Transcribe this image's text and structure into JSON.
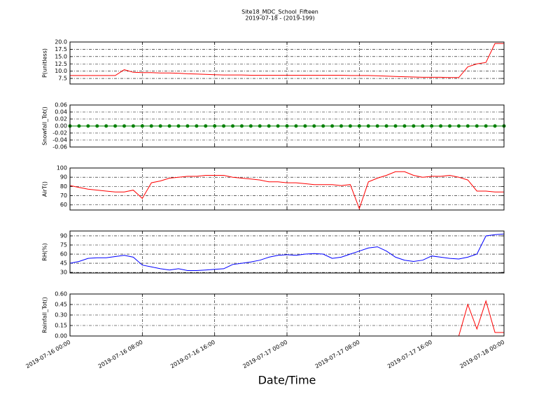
{
  "chart_data": [
    {
      "type": "line",
      "title": "Site18_MDC_School_Fifteen",
      "subtitle": "2019-07-18 - (2019-199)",
      "ylabel": "P(unitless)",
      "color": "#ff0000",
      "grid": true,
      "xlim": [
        "2019-07-16 00:00",
        "2019-07-18 00:00"
      ],
      "xticks": [
        "2019-07-16 00:00",
        "2019-07-16 08:00",
        "2019-07-16 16:00",
        "2019-07-17 00:00",
        "2019-07-17 08:00",
        "2019-07-17 16:00",
        "2019-07-18 00:00"
      ],
      "ylim": [
        5.6,
        20
      ],
      "yticks": [
        7.5,
        {
          "value": 10,
          "label": "10.0"
        },
        12.5,
        {
          "value": 15,
          "label": "15.0"
        },
        17.5,
        {
          "value": 20,
          "label": "20.0"
        }
      ],
      "x": [
        "2019-07-16 00:00",
        "2019-07-16 01:00",
        "2019-07-16 02:00",
        "2019-07-16 03:00",
        "2019-07-16 04:00",
        "2019-07-16 05:00",
        "2019-07-16 06:00",
        "2019-07-16 07:00",
        "2019-07-16 08:00",
        "2019-07-16 09:00",
        "2019-07-16 10:00",
        "2019-07-16 11:00",
        "2019-07-16 12:00",
        "2019-07-16 13:00",
        "2019-07-16 14:00",
        "2019-07-16 15:00",
        "2019-07-16 16:00",
        "2019-07-16 17:00",
        "2019-07-16 18:00",
        "2019-07-16 19:00",
        "2019-07-16 20:00",
        "2019-07-16 21:00",
        "2019-07-16 22:00",
        "2019-07-16 23:00",
        "2019-07-17 00:00",
        "2019-07-17 01:00",
        "2019-07-17 02:00",
        "2019-07-17 03:00",
        "2019-07-17 04:00",
        "2019-07-17 05:00",
        "2019-07-17 06:00",
        "2019-07-17 07:00",
        "2019-07-17 08:00",
        "2019-07-17 09:00",
        "2019-07-17 10:00",
        "2019-07-17 11:00",
        "2019-07-17 12:00",
        "2019-07-17 13:00",
        "2019-07-17 14:00",
        "2019-07-17 15:00",
        "2019-07-17 16:00",
        "2019-07-17 17:00",
        "2019-07-17 18:00",
        "2019-07-17 19:00",
        "2019-07-17 20:00",
        "2019-07-17 21:00",
        "2019-07-17 22:00",
        "2019-07-17 23:00",
        "2019-07-18 00:00"
      ],
      "values": [
        8.5,
        8.5,
        8.5,
        8.5,
        8.5,
        8.5,
        10.5,
        9.6,
        9.5,
        9.5,
        9.4,
        9.4,
        9.3,
        9.1,
        9,
        8.9,
        8.8,
        8.7,
        8.7,
        8.7,
        8.6,
        8.6,
        8.6,
        8.6,
        8.6,
        8.6,
        8.6,
        8.6,
        8.6,
        8.6,
        8.6,
        8.5,
        8.5,
        8.5,
        8.4,
        8.3,
        8.2,
        8.1,
        8,
        7.9,
        7.9,
        7.9,
        7.8,
        7.8,
        11.5,
        12.5,
        13,
        19.5,
        19.5
      ]
    },
    {
      "type": "line",
      "ylabel": "Snowfall_Tot()",
      "color": "#008000",
      "marker": true,
      "grid": true,
      "xlim": [
        "2019-07-16 00:00",
        "2019-07-18 00:00"
      ],
      "xticks": [
        "2019-07-16 00:00",
        "2019-07-16 08:00",
        "2019-07-16 16:00",
        "2019-07-17 00:00",
        "2019-07-17 08:00",
        "2019-07-17 16:00",
        "2019-07-18 00:00"
      ],
      "ylim": [
        -0.06,
        0.06
      ],
      "yticks": [
        -0.06,
        -0.04,
        -0.02,
        {
          "value": 0,
          "label": "0.00"
        },
        0.02,
        0.04,
        0.06
      ],
      "x": [
        "2019-07-16 00:00",
        "2019-07-16 01:00",
        "2019-07-16 02:00",
        "2019-07-16 03:00",
        "2019-07-16 04:00",
        "2019-07-16 05:00",
        "2019-07-16 06:00",
        "2019-07-16 07:00",
        "2019-07-16 08:00",
        "2019-07-16 09:00",
        "2019-07-16 10:00",
        "2019-07-16 11:00",
        "2019-07-16 12:00",
        "2019-07-16 13:00",
        "2019-07-16 14:00",
        "2019-07-16 15:00",
        "2019-07-16 16:00",
        "2019-07-16 17:00",
        "2019-07-16 18:00",
        "2019-07-16 19:00",
        "2019-07-16 20:00",
        "2019-07-16 21:00",
        "2019-07-16 22:00",
        "2019-07-16 23:00",
        "2019-07-17 00:00",
        "2019-07-17 01:00",
        "2019-07-17 02:00",
        "2019-07-17 03:00",
        "2019-07-17 04:00",
        "2019-07-17 05:00",
        "2019-07-17 06:00",
        "2019-07-17 07:00",
        "2019-07-17 08:00",
        "2019-07-17 09:00",
        "2019-07-17 10:00",
        "2019-07-17 11:00",
        "2019-07-17 12:00",
        "2019-07-17 13:00",
        "2019-07-17 14:00",
        "2019-07-17 15:00",
        "2019-07-17 16:00",
        "2019-07-17 17:00",
        "2019-07-17 18:00",
        "2019-07-17 19:00",
        "2019-07-17 20:00",
        "2019-07-17 21:00",
        "2019-07-17 22:00",
        "2019-07-17 23:00",
        "2019-07-18 00:00"
      ],
      "values": [
        0,
        0,
        0,
        0,
        0,
        0,
        0,
        0,
        0,
        0,
        0,
        0,
        0,
        0,
        0,
        0,
        0,
        0,
        0,
        0,
        0,
        0,
        0,
        0,
        0,
        0,
        0,
        0,
        0,
        0,
        0,
        0,
        0,
        0,
        0,
        0,
        0,
        0,
        0,
        0,
        0,
        0,
        0,
        0,
        0,
        0,
        0,
        0,
        0
      ]
    },
    {
      "type": "line",
      "ylabel": "AirT()",
      "color": "#ff0000",
      "grid": true,
      "xlim": [
        "2019-07-16 00:00",
        "2019-07-18 00:00"
      ],
      "xticks": [
        "2019-07-16 00:00",
        "2019-07-16 08:00",
        "2019-07-16 16:00",
        "2019-07-17 00:00",
        "2019-07-17 08:00",
        "2019-07-17 16:00",
        "2019-07-18 00:00"
      ],
      "ylim": [
        54.5,
        100
      ],
      "yticks": [
        60,
        70,
        80,
        90,
        100
      ],
      "x": [
        "2019-07-16 00:00",
        "2019-07-16 01:00",
        "2019-07-16 02:00",
        "2019-07-16 03:00",
        "2019-07-16 04:00",
        "2019-07-16 05:00",
        "2019-07-16 06:00",
        "2019-07-16 07:00",
        "2019-07-16 08:00",
        "2019-07-16 09:00",
        "2019-07-16 10:00",
        "2019-07-16 11:00",
        "2019-07-16 12:00",
        "2019-07-16 13:00",
        "2019-07-16 14:00",
        "2019-07-16 15:00",
        "2019-07-16 16:00",
        "2019-07-16 17:00",
        "2019-07-16 18:00",
        "2019-07-16 19:00",
        "2019-07-16 20:00",
        "2019-07-16 21:00",
        "2019-07-16 22:00",
        "2019-07-16 23:00",
        "2019-07-17 00:00",
        "2019-07-17 01:00",
        "2019-07-17 02:00",
        "2019-07-17 03:00",
        "2019-07-17 04:00",
        "2019-07-17 05:00",
        "2019-07-17 06:00",
        "2019-07-17 07:00",
        "2019-07-17 08:00",
        "2019-07-17 09:00",
        "2019-07-17 10:00",
        "2019-07-17 11:00",
        "2019-07-17 12:00",
        "2019-07-17 13:00",
        "2019-07-17 14:00",
        "2019-07-17 15:00",
        "2019-07-17 16:00",
        "2019-07-17 17:00",
        "2019-07-17 18:00",
        "2019-07-17 19:00",
        "2019-07-17 20:00",
        "2019-07-17 21:00",
        "2019-07-17 22:00",
        "2019-07-17 23:00",
        "2019-07-18 00:00"
      ],
      "values": [
        81,
        79,
        77,
        76,
        75,
        74,
        74,
        76,
        67,
        84,
        86,
        89,
        90,
        91,
        91,
        92,
        92,
        92,
        90,
        89,
        88,
        87,
        85,
        85,
        84,
        84,
        83,
        82,
        82,
        82,
        81,
        82,
        56,
        85,
        89,
        92,
        96,
        96,
        92,
        90,
        91,
        91,
        92,
        90,
        87,
        75,
        75,
        74,
        74
      ]
    },
    {
      "type": "line",
      "ylabel": "RH(%)",
      "color": "#0000ff",
      "grid": true,
      "xlim": [
        "2019-07-16 00:00",
        "2019-07-18 00:00"
      ],
      "xticks": [
        "2019-07-16 00:00",
        "2019-07-16 08:00",
        "2019-07-16 16:00",
        "2019-07-17 00:00",
        "2019-07-17 08:00",
        "2019-07-17 16:00",
        "2019-07-18 00:00"
      ],
      "ylim": [
        29,
        98
      ],
      "yticks": [
        30,
        45,
        60,
        75,
        90
      ],
      "x": [
        "2019-07-16 00:00",
        "2019-07-16 01:00",
        "2019-07-16 02:00",
        "2019-07-16 03:00",
        "2019-07-16 04:00",
        "2019-07-16 05:00",
        "2019-07-16 06:00",
        "2019-07-16 07:00",
        "2019-07-16 08:00",
        "2019-07-16 09:00",
        "2019-07-16 10:00",
        "2019-07-16 11:00",
        "2019-07-16 12:00",
        "2019-07-16 13:00",
        "2019-07-16 14:00",
        "2019-07-16 15:00",
        "2019-07-16 16:00",
        "2019-07-16 17:00",
        "2019-07-16 18:00",
        "2019-07-16 19:00",
        "2019-07-16 20:00",
        "2019-07-16 21:00",
        "2019-07-16 22:00",
        "2019-07-16 23:00",
        "2019-07-17 00:00",
        "2019-07-17 01:00",
        "2019-07-17 02:00",
        "2019-07-17 03:00",
        "2019-07-17 04:00",
        "2019-07-17 05:00",
        "2019-07-17 06:00",
        "2019-07-17 07:00",
        "2019-07-17 08:00",
        "2019-07-17 09:00",
        "2019-07-17 10:00",
        "2019-07-17 11:00",
        "2019-07-17 12:00",
        "2019-07-17 13:00",
        "2019-07-17 14:00",
        "2019-07-17 15:00",
        "2019-07-17 16:00",
        "2019-07-17 17:00",
        "2019-07-17 18:00",
        "2019-07-17 19:00",
        "2019-07-17 20:00",
        "2019-07-17 21:00",
        "2019-07-17 22:00",
        "2019-07-17 23:00",
        "2019-07-18 00:00"
      ],
      "values": [
        45,
        48,
        53,
        54,
        54,
        56,
        58,
        55,
        42,
        39,
        36,
        34,
        36,
        33,
        33,
        34,
        35,
        36,
        43,
        45,
        47,
        50,
        55,
        58,
        59,
        58,
        60,
        61,
        60,
        53,
        55,
        60,
        65,
        70,
        72,
        65,
        55,
        50,
        48,
        50,
        57,
        55,
        53,
        52,
        55,
        60,
        90,
        92,
        93
      ]
    },
    {
      "type": "line",
      "ylabel": "Rainfall_Tot()",
      "xlabel": "Date/Time",
      "color": "#ff0000",
      "grid": true,
      "xlim": [
        "2019-07-16 00:00",
        "2019-07-18 00:00"
      ],
      "xticks": [
        "2019-07-16 00:00",
        "2019-07-16 08:00",
        "2019-07-16 16:00",
        "2019-07-17 00:00",
        "2019-07-17 08:00",
        "2019-07-17 16:00",
        "2019-07-18 00:00"
      ],
      "ylim": [
        0,
        0.6
      ],
      "yticks": [
        {
          "value": 0,
          "label": "0.00"
        },
        0.15,
        {
          "value": 0.3,
          "label": "0.30"
        },
        0.45,
        {
          "value": 0.6,
          "label": "0.60"
        }
      ],
      "x": [
        "2019-07-16 00:00",
        "2019-07-16 01:00",
        "2019-07-16 02:00",
        "2019-07-16 03:00",
        "2019-07-16 04:00",
        "2019-07-16 05:00",
        "2019-07-16 06:00",
        "2019-07-16 07:00",
        "2019-07-16 08:00",
        "2019-07-16 09:00",
        "2019-07-16 10:00",
        "2019-07-16 11:00",
        "2019-07-16 12:00",
        "2019-07-16 13:00",
        "2019-07-16 14:00",
        "2019-07-16 15:00",
        "2019-07-16 16:00",
        "2019-07-16 17:00",
        "2019-07-16 18:00",
        "2019-07-16 19:00",
        "2019-07-16 20:00",
        "2019-07-16 21:00",
        "2019-07-16 22:00",
        "2019-07-16 23:00",
        "2019-07-17 00:00",
        "2019-07-17 01:00",
        "2019-07-17 02:00",
        "2019-07-17 03:00",
        "2019-07-17 04:00",
        "2019-07-17 05:00",
        "2019-07-17 06:00",
        "2019-07-17 07:00",
        "2019-07-17 08:00",
        "2019-07-17 09:00",
        "2019-07-17 10:00",
        "2019-07-17 11:00",
        "2019-07-17 12:00",
        "2019-07-17 13:00",
        "2019-07-17 14:00",
        "2019-07-17 15:00",
        "2019-07-17 16:00",
        "2019-07-17 17:00",
        "2019-07-17 18:00",
        "2019-07-17 19:00",
        "2019-07-17 20:00",
        "2019-07-17 21:00",
        "2019-07-17 22:00",
        "2019-07-17 23:00",
        "2019-07-18 00:00"
      ],
      "values": [
        0,
        0,
        0,
        0,
        0,
        0,
        0,
        0,
        0,
        0,
        0,
        0,
        0,
        0,
        0,
        0,
        0,
        0,
        0,
        0,
        0,
        0,
        0,
        0,
        0,
        0,
        0,
        0,
        0,
        0,
        0,
        0,
        0,
        0,
        0,
        0,
        0,
        0,
        0,
        0,
        0,
        0,
        0,
        0,
        0.45,
        0.1,
        0.5,
        0.05,
        0.05
      ]
    }
  ]
}
